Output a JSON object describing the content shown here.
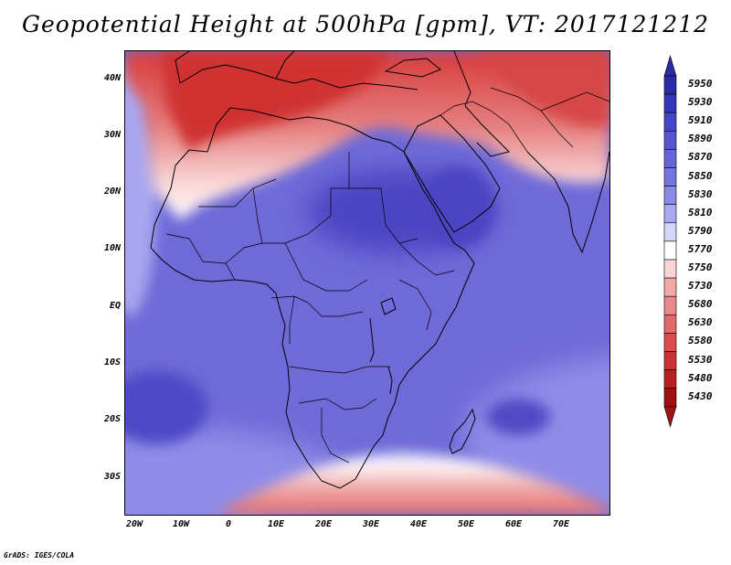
{
  "title": "Geopotential Height at 500hPa [gpm], VT: 2017121212",
  "credit": "GrADS: IGES/COLA",
  "lat_labels": [
    "40N",
    "30N",
    "20N",
    "10N",
    "EQ",
    "10S",
    "20S",
    "30S"
  ],
  "lon_labels": [
    "20W",
    "10W",
    "0",
    "10E",
    "20E",
    "30E",
    "40E",
    "50E",
    "60E",
    "70E"
  ],
  "map": {
    "lon_range": [
      -22,
      79
    ],
    "lat_range": [
      -37,
      44
    ],
    "lon_ticks": [
      -20,
      -10,
      0,
      10,
      20,
      30,
      40,
      50,
      60,
      70
    ],
    "lat_ticks": [
      40,
      30,
      20,
      10,
      0,
      -10,
      -20,
      -30
    ]
  },
  "colorbar": {
    "levels": [
      "5950",
      "5930",
      "5910",
      "5890",
      "5870",
      "5850",
      "5830",
      "5810",
      "5790",
      "5770",
      "5750",
      "5730",
      "5680",
      "5630",
      "5580",
      "5530",
      "5480",
      "5430"
    ],
    "colors": [
      "#2b2ba8",
      "#3535b8",
      "#4545c8",
      "#5555d0",
      "#6565d8",
      "#7575e0",
      "#8a8ae6",
      "#a8a8f0",
      "#d6d6f8",
      "#ffffff",
      "#f8d4d4",
      "#f0a8a8",
      "#e88888",
      "#e06a6a",
      "#d84c4c",
      "#cc3232",
      "#b82020",
      "#a01010"
    ]
  }
}
